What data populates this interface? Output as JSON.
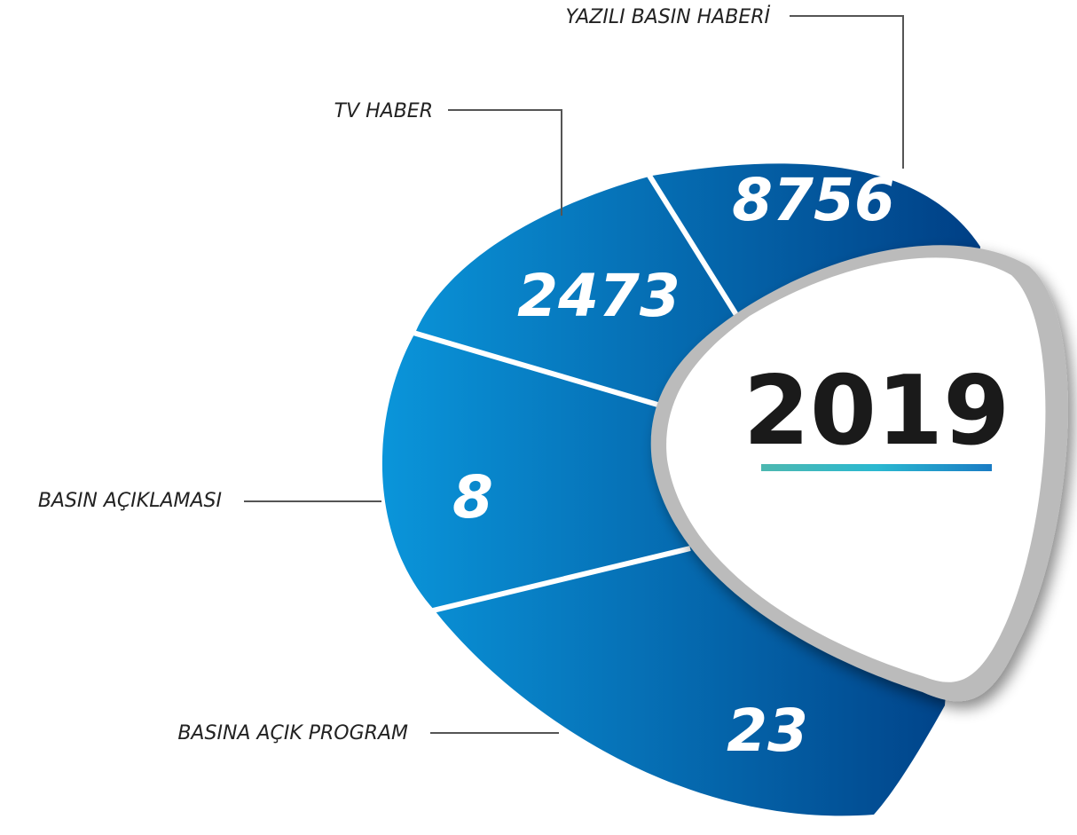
{
  "title": "2019",
  "segments": [
    {
      "label": "YAZILI BASIN HABERİ",
      "value": "8756"
    },
    {
      "label": "TV HABER",
      "value": "2473"
    },
    {
      "label": "BASIN AÇIKLAMASI",
      "value": "8"
    },
    {
      "label": "BASINA AÇIK PROGRAM",
      "value": "23"
    }
  ]
}
